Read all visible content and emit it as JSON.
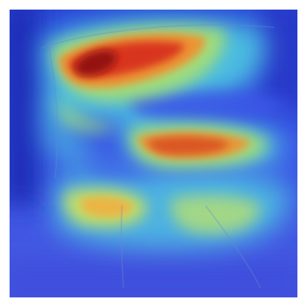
{
  "image": {
    "kind": "attention-heatmap-overlay",
    "colormap": "jet",
    "colormap_stops": [
      "#1a1aa8",
      "#2f3fe0",
      "#3f8fe8",
      "#4fd0e0",
      "#a8e070",
      "#f0e040",
      "#f09030",
      "#d83020",
      "#8c1010"
    ],
    "background_color": "#ffffff",
    "hotspots": [
      {
        "id": "upper-band",
        "intensity": 1.0
      },
      {
        "id": "middle-band",
        "intensity": 0.85
      },
      {
        "id": "lower-left-blob",
        "intensity": 0.62
      },
      {
        "id": "lower-right-blob",
        "intensity": 0.5
      }
    ]
  }
}
